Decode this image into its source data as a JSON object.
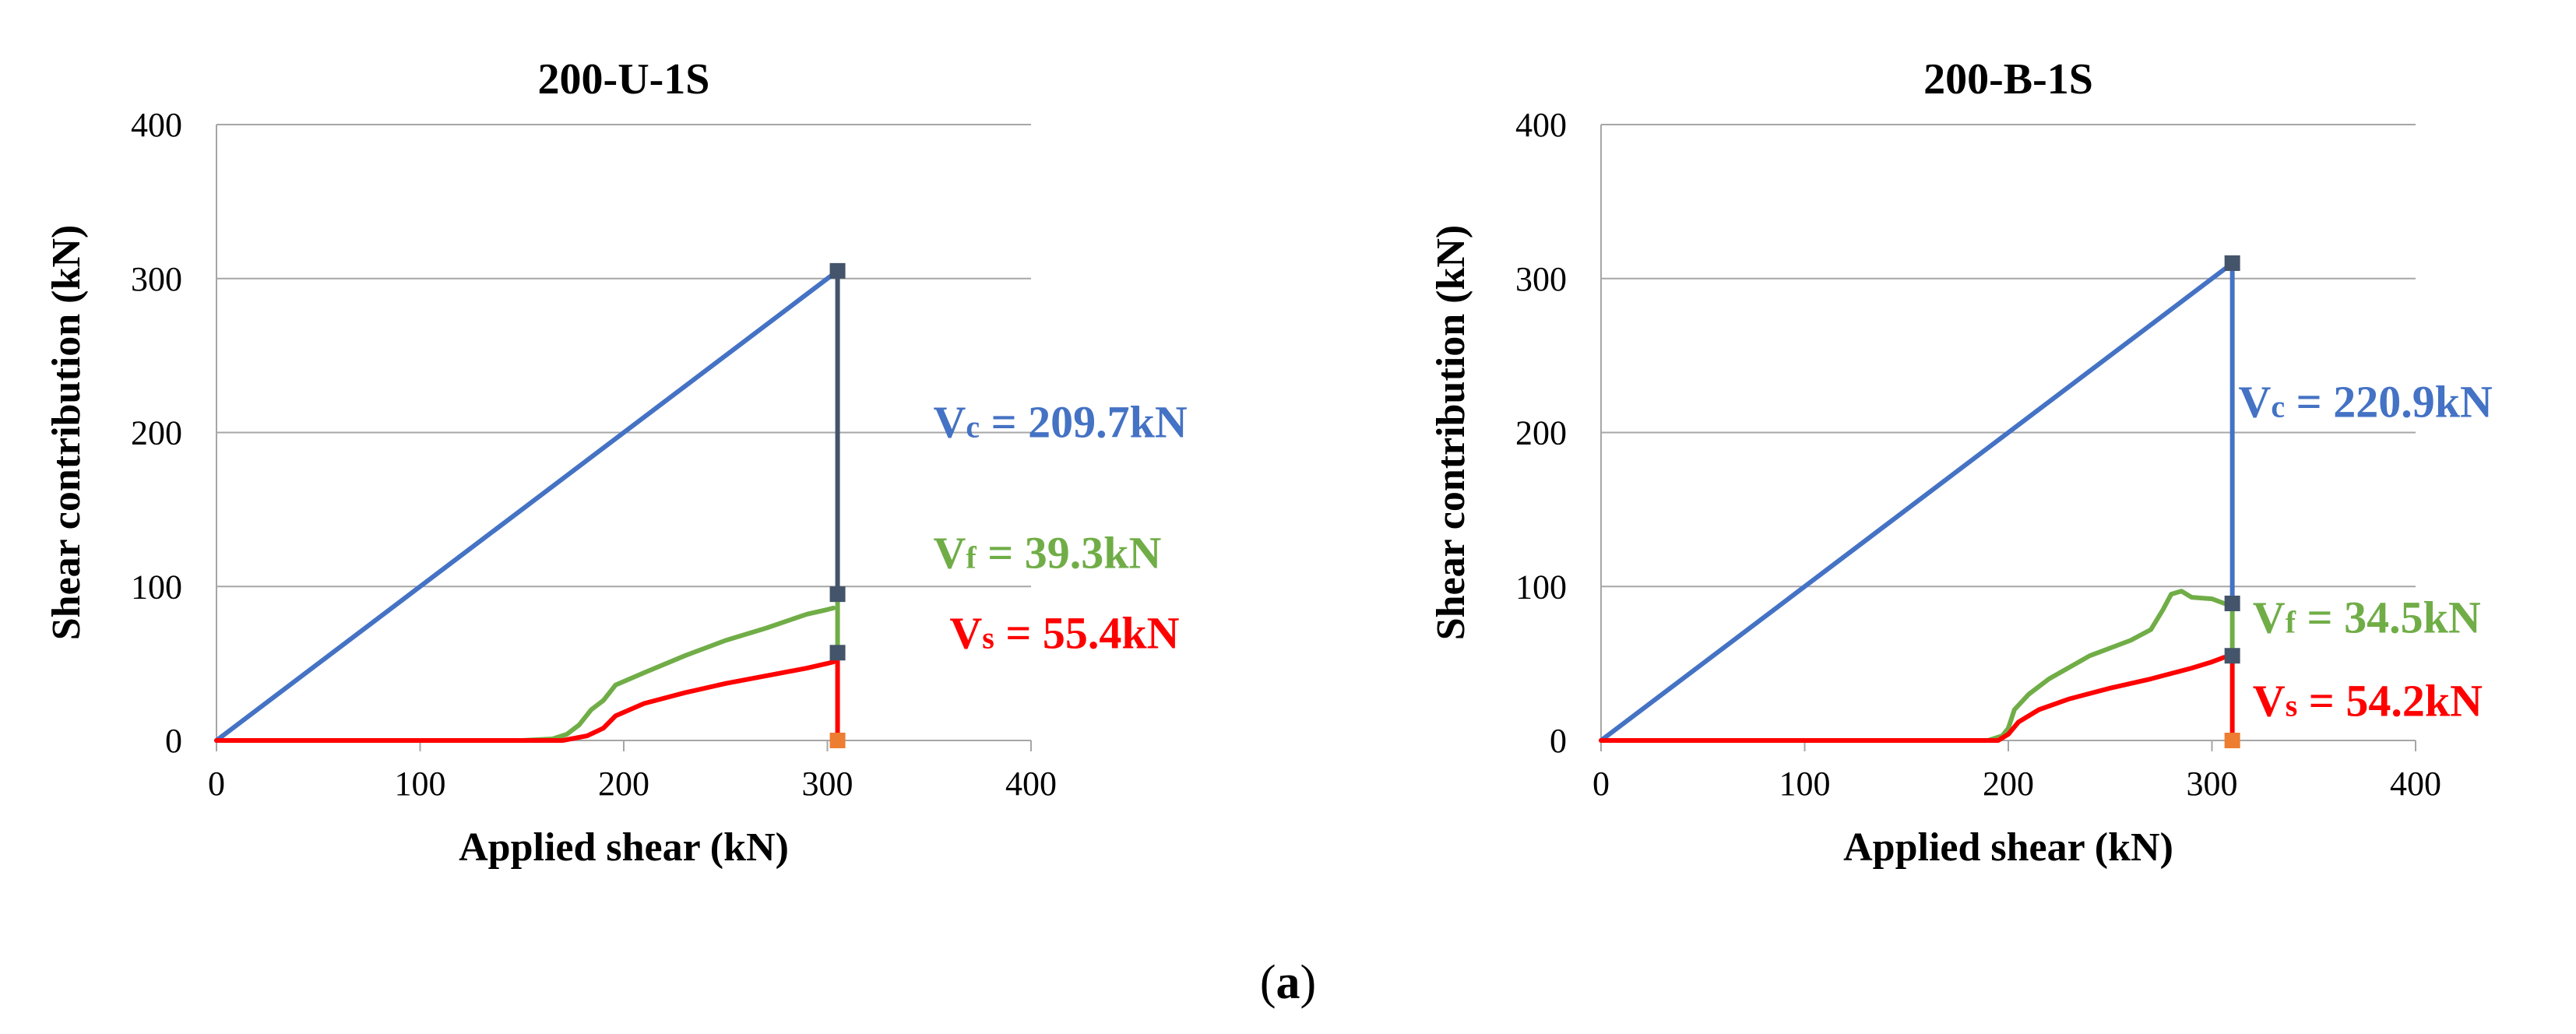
{
  "caption": {
    "open": "(",
    "letter": "a",
    "close": ")"
  },
  "chart_data": [
    {
      "type": "line",
      "title": "200-U-1S",
      "xlabel": "Applied shear (kN)",
      "ylabel": "Shear contribution (kN)",
      "xlim": [
        0,
        400
      ],
      "ylim": [
        0,
        400
      ],
      "xticks": [
        "0",
        "100",
        "200",
        "300",
        "400"
      ],
      "yticks": [
        "0",
        "100",
        "200",
        "300",
        "400"
      ],
      "grid": true,
      "series": [
        {
          "name": "Vc",
          "color": "#4472c4",
          "x": [
            0,
            305
          ],
          "y": [
            0,
            305
          ]
        },
        {
          "name": "Vf",
          "color": "#70ad47",
          "x": [
            0,
            150,
            165,
            172,
            178,
            184,
            190,
            196,
            210,
            230,
            250,
            270,
            290,
            300,
            303
          ],
          "y": [
            0,
            0,
            1,
            4,
            10,
            20,
            26,
            36,
            44,
            55,
            65,
            73,
            82,
            85,
            86
          ]
        },
        {
          "name": "Vs",
          "color": "#ff0000",
          "x": [
            0,
            170,
            182,
            190,
            196,
            210,
            230,
            250,
            270,
            290,
            300,
            303
          ],
          "y": [
            0,
            0,
            3,
            8,
            16,
            24,
            31,
            37,
            42,
            47,
            50,
            51
          ]
        }
      ],
      "drops": [
        {
          "color": "#44546a",
          "x": 305,
          "y_from": 305,
          "y_to": 95
        },
        {
          "color": "#70ad47",
          "x": 305,
          "y_from": 95,
          "y_to": 57
        },
        {
          "color": "#ff0000",
          "x": 305,
          "y_from": 57,
          "y_to": 0
        }
      ],
      "markers": [
        {
          "color": "#44546a",
          "x": 305,
          "y": 305
        },
        {
          "color": "#44546a",
          "x": 305,
          "y": 95
        },
        {
          "color": "#44546a",
          "x": 305,
          "y": 57
        },
        {
          "color": "#ed7d31",
          "x": 305,
          "y": 0
        }
      ],
      "annotations": [
        {
          "color": "#4472c4",
          "letter": "V",
          "sub": "c",
          "text": " = 209.7kN",
          "at": [
            352,
            197
          ]
        },
        {
          "color": "#70ad47",
          "letter": "V",
          "sub": "f",
          "text": " = 39.3kN",
          "at": [
            352,
            112
          ]
        },
        {
          "color": "#ff0000",
          "letter": "V",
          "sub": "s",
          "text": " = 55.4kN",
          "at": [
            360,
            60
          ]
        }
      ]
    },
    {
      "type": "line",
      "title": "200-B-1S",
      "xlabel": "Applied shear (kN)",
      "ylabel": "Shear contribution (kN)",
      "xlim": [
        0,
        400
      ],
      "ylim": [
        0,
        400
      ],
      "xticks": [
        "0",
        "100",
        "200",
        "300",
        "400"
      ],
      "yticks": [
        "0",
        "100",
        "200",
        "300",
        "400"
      ],
      "grid": true,
      "series": [
        {
          "name": "Vc",
          "color": "#4472c4",
          "x": [
            0,
            310
          ],
          "y": [
            0,
            310
          ]
        },
        {
          "name": "Vf",
          "color": "#70ad47",
          "x": [
            0,
            190,
            197,
            200,
            203,
            210,
            220,
            240,
            260,
            270,
            276,
            280,
            285,
            290,
            300,
            306
          ],
          "y": [
            0,
            0,
            3,
            8,
            20,
            30,
            40,
            55,
            65,
            72,
            85,
            95,
            97,
            93,
            92,
            89
          ]
        },
        {
          "name": "Vs",
          "color": "#ff0000",
          "x": [
            0,
            195,
            200,
            205,
            215,
            230,
            250,
            270,
            290,
            300,
            306
          ],
          "y": [
            0,
            0,
            4,
            12,
            20,
            27,
            34,
            40,
            47,
            51,
            54
          ]
        }
      ],
      "drops": [
        {
          "color": "#4472c4",
          "x": 310,
          "y_from": 310,
          "y_to": 89
        },
        {
          "color": "#70ad47",
          "x": 310,
          "y_from": 89,
          "y_to": 55
        },
        {
          "color": "#ff0000",
          "x": 310,
          "y_from": 55,
          "y_to": 0
        }
      ],
      "markers": [
        {
          "color": "#44546a",
          "x": 310,
          "y": 310
        },
        {
          "color": "#44546a",
          "x": 310,
          "y": 89
        },
        {
          "color": "#44546a",
          "x": 310,
          "y": 55
        },
        {
          "color": "#ed7d31",
          "x": 310,
          "y": 0
        }
      ],
      "annotations": [
        {
          "color": "#4472c4",
          "letter": "V",
          "sub": "c",
          "text": " = 220.9kN",
          "at": [
            313,
            210
          ]
        },
        {
          "color": "#70ad47",
          "letter": "V",
          "sub": "f",
          "text": " = 34.5kN",
          "at": [
            320,
            70
          ]
        },
        {
          "color": "#ff0000",
          "letter": "V",
          "sub": "s",
          "text": " = 54.2kN",
          "at": [
            320,
            16
          ]
        }
      ]
    }
  ]
}
